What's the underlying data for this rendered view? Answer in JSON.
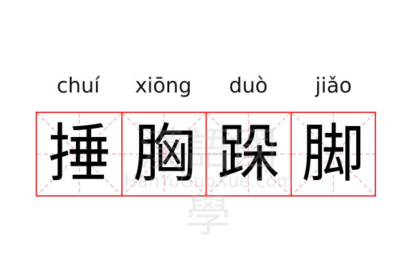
{
  "pinyin": [
    "chuí",
    "xiōng",
    "duò",
    "jiǎo"
  ],
  "characters": [
    "捶",
    "胸",
    "跺",
    "脚"
  ],
  "watermark": {
    "text": "漢語國學",
    "url": "HanYuGuoXue.com"
  },
  "colors": {
    "grid": "#f03030",
    "guide": "#f5a0a0",
    "text": "#000000"
  }
}
